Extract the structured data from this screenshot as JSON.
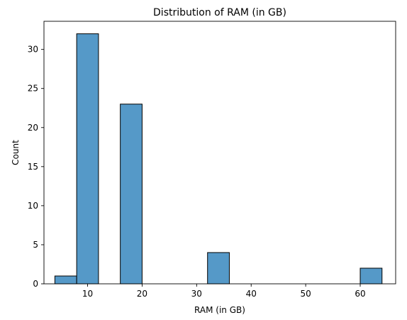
{
  "chart_data": {
    "type": "bar",
    "title": "Distribution of RAM (in GB)",
    "xlabel": "RAM (in GB)",
    "ylabel": "Count",
    "xlim": [
      2,
      66.5
    ],
    "ylim": [
      0,
      33.6
    ],
    "xticks": [
      10,
      20,
      30,
      40,
      50,
      60
    ],
    "yticks": [
      0,
      5,
      10,
      15,
      20,
      25,
      30
    ],
    "bin_width": 4,
    "bins": [
      {
        "x0": 4,
        "x1": 8,
        "count": 1
      },
      {
        "x0": 8,
        "x1": 12,
        "count": 32
      },
      {
        "x0": 12,
        "x1": 16,
        "count": 0
      },
      {
        "x0": 16,
        "x1": 20,
        "count": 23
      },
      {
        "x0": 20,
        "x1": 24,
        "count": 0
      },
      {
        "x0": 24,
        "x1": 28,
        "count": 0
      },
      {
        "x0": 28,
        "x1": 32,
        "count": 0
      },
      {
        "x0": 32,
        "x1": 36,
        "count": 4
      },
      {
        "x0": 36,
        "x1": 40,
        "count": 0
      },
      {
        "x0": 40,
        "x1": 44,
        "count": 0
      },
      {
        "x0": 44,
        "x1": 48,
        "count": 0
      },
      {
        "x0": 48,
        "x1": 52,
        "count": 0
      },
      {
        "x0": 52,
        "x1": 56,
        "count": 0
      },
      {
        "x0": 56,
        "x1": 60,
        "count": 0
      },
      {
        "x0": 60,
        "x1": 64,
        "count": 2
      }
    ],
    "bar_color": "#5599c8",
    "edge_color": "#000000",
    "grid": false,
    "legend": "none"
  }
}
